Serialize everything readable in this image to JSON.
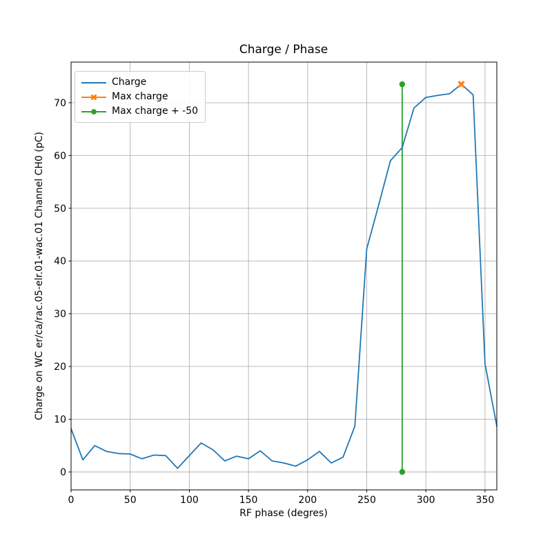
{
  "colors": {
    "blue": "#1f77b4",
    "orange": "#ff7f0e",
    "green": "#2ca02c",
    "grid": "#b0b0b0",
    "spine": "#000000",
    "text": "#000000"
  },
  "chart_data": {
    "type": "line",
    "title": "Charge / Phase",
    "xlabel": "RF phase (degres)",
    "ylabel": "Charge on WC er/ca/rac.05-elr.01-wac.01 Channel CH0 (pC)",
    "x": [
      0,
      10,
      20,
      30,
      40,
      50,
      60,
      70,
      80,
      90,
      100,
      110,
      120,
      130,
      140,
      150,
      160,
      170,
      180,
      190,
      200,
      210,
      220,
      230,
      240,
      250,
      260,
      270,
      280,
      290,
      300,
      310,
      320,
      330,
      340,
      350,
      360
    ],
    "series": [
      {
        "name": "Charge",
        "color": "#1f77b4",
        "marker": "none",
        "values": [
          8.2,
          2.3,
          5.0,
          3.9,
          3.5,
          3.4,
          2.5,
          3.2,
          3.1,
          0.7,
          3.1,
          5.5,
          4.2,
          2.1,
          3.0,
          2.5,
          4.0,
          2.1,
          1.7,
          1.1,
          2.3,
          3.9,
          1.7,
          2.8,
          8.7,
          42.3,
          50.5,
          59.0,
          61.5,
          69.0,
          71.0,
          71.4,
          71.7,
          73.5,
          71.5,
          20.5,
          8.7
        ]
      },
      {
        "name": "Max charge",
        "color": "#ff7f0e",
        "marker": "x",
        "point": {
          "x": 330,
          "y": 73.5
        }
      },
      {
        "name": "Max charge + -50",
        "color": "#2ca02c",
        "marker": "o",
        "vline": {
          "x": 280,
          "ymin": 0,
          "ymax": 73.5
        }
      }
    ],
    "xticks": {
      "values": [
        0,
        50,
        100,
        150,
        200,
        250,
        300,
        350
      ],
      "labels": [
        "0",
        "50",
        "100",
        "150",
        "200",
        "250",
        "300",
        "350"
      ]
    },
    "yticks": {
      "values": [
        0,
        10,
        20,
        30,
        40,
        50,
        60,
        70
      ],
      "labels": [
        "0",
        "10",
        "20",
        "30",
        "40",
        "50",
        "60",
        "70"
      ]
    },
    "xlim": [
      0,
      360
    ],
    "ylim": [
      -3.4,
      77.7
    ],
    "grid": true,
    "legend_position": "upper left"
  }
}
